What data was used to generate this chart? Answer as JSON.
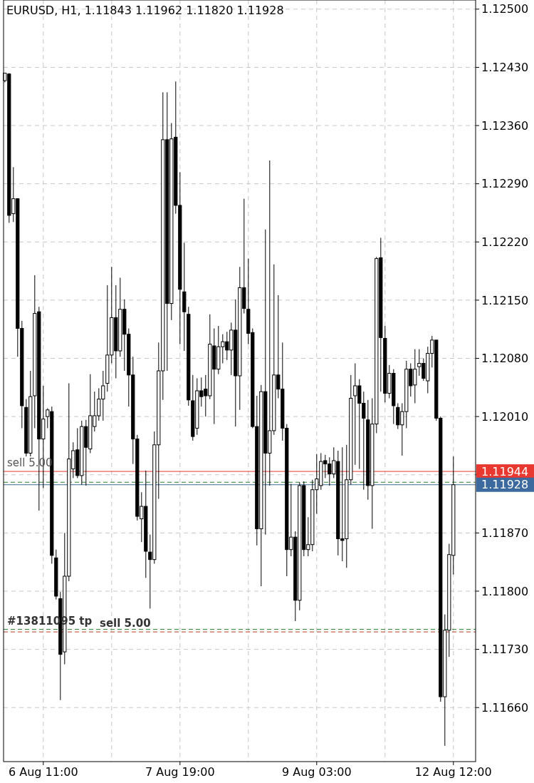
{
  "chart_data": {
    "type": "candlestick",
    "title": "EURUSD, H1, 1.11843 1.11962 1.11820 1.11928",
    "color": "#000000",
    "grid": true,
    "categories": [
      null,
      null,
      null,
      null,
      null,
      null,
      null,
      null,
      null,
      "6 Aug 11:00",
      null,
      null,
      null,
      null,
      null,
      null,
      null,
      null,
      null,
      null,
      null,
      null,
      null,
      null,
      null,
      null,
      null,
      null,
      null,
      null,
      null,
      null,
      null,
      null,
      null,
      null,
      null,
      null,
      null,
      null,
      null,
      "7 Aug 19:00",
      null,
      null,
      null,
      null,
      null,
      null,
      null,
      null,
      null,
      null,
      null,
      null,
      null,
      null,
      null,
      null,
      null,
      null,
      null,
      null,
      null,
      null,
      null,
      null,
      null,
      null,
      null,
      null,
      null,
      null,
      null,
      "9 Aug 03:00",
      null,
      null,
      null,
      null,
      null,
      null,
      null,
      null,
      null,
      null,
      null,
      null,
      null,
      null,
      null,
      null,
      null,
      null,
      null,
      null,
      null,
      null,
      null,
      null,
      null,
      null,
      null,
      null,
      null,
      null,
      null,
      "12 Aug 12:00"
    ],
    "ohlc": [
      [
        1.12414,
        1.12423,
        1.12412,
        1.12423
      ],
      [
        1.12422,
        1.12423,
        1.12243,
        1.12252
      ],
      [
        1.12254,
        1.1231,
        1.12244,
        1.12272
      ],
      [
        1.12272,
        1.12272,
        1.12082,
        1.12116
      ],
      [
        1.12116,
        1.12125,
        1.11996,
        1.12023
      ],
      [
        1.12021,
        1.12031,
        1.11962,
        1.11966
      ],
      [
        1.11966,
        1.12065,
        1.11962,
        1.12034
      ],
      [
        1.12035,
        1.1218,
        1.11996,
        1.12134
      ],
      [
        1.12136,
        1.12142,
        1.11897,
        1.11983
      ],
      [
        1.11983,
        1.12047,
        1.11924,
        1.12007
      ],
      [
        1.1201,
        1.1202,
        1.11996,
        1.12018
      ],
      [
        1.12016,
        1.12022,
        1.11833,
        1.11843
      ],
      [
        1.1184,
        1.1185,
        1.1179,
        1.11794
      ],
      [
        1.11791,
        1.11799,
        1.11669,
        1.11724
      ],
      [
        1.11727,
        1.1187,
        1.11712,
        1.11818
      ],
      [
        1.11818,
        1.1205,
        1.11812,
        1.11959
      ],
      [
        1.11947,
        1.11979,
        1.11936,
        1.11969
      ],
      [
        1.1197,
        1.11996,
        1.11936,
        1.11939
      ],
      [
        1.11939,
        1.12005,
        1.11928,
        1.11998
      ],
      [
        1.11998,
        1.12006,
        1.11927,
        1.11973
      ],
      [
        1.11971,
        1.12061,
        1.11966,
        1.12011
      ],
      [
        1.11998,
        1.1204,
        1.11992,
        1.12011
      ],
      [
        1.12011,
        1.12044,
        1.12005,
        1.12031
      ],
      [
        1.12031,
        1.12065,
        1.12005,
        1.12047
      ],
      [
        1.1205,
        1.12168,
        1.1204,
        1.12084
      ],
      [
        1.12084,
        1.1219,
        1.12074,
        1.12129
      ],
      [
        1.12129,
        1.12168,
        1.12056,
        1.12089
      ],
      [
        1.12089,
        1.12177,
        1.12082,
        1.12139
      ],
      [
        1.12139,
        1.12151,
        1.12065,
        1.12109
      ],
      [
        1.12109,
        1.12116,
        1.12022,
        1.1206
      ],
      [
        1.1206,
        1.12082,
        1.11953,
        1.11983
      ],
      [
        1.11983,
        1.11988,
        1.11885,
        1.1189
      ],
      [
        1.11887,
        1.11919,
        1.11859,
        1.11902
      ],
      [
        1.11902,
        1.11945,
        1.11816,
        1.11848
      ],
      [
        1.11847,
        1.11868,
        1.11779,
        1.11838
      ],
      [
        1.11838,
        1.11992,
        1.11833,
        1.11976
      ],
      [
        1.11976,
        1.12099,
        1.11911,
        1.12065
      ],
      [
        1.12065,
        1.124,
        1.1203,
        1.12343
      ],
      [
        1.12343,
        1.124,
        1.12065,
        1.12146
      ],
      [
        1.12146,
        1.12363,
        1.12126,
        1.12344
      ],
      [
        1.12346,
        1.12413,
        1.12254,
        1.12264
      ],
      [
        1.12264,
        1.12304,
        1.12097,
        1.12163
      ],
      [
        1.1216,
        1.12219,
        1.12089,
        1.12136
      ],
      [
        1.12133,
        1.12142,
        1.12023,
        1.1203
      ],
      [
        1.12029,
        1.1206,
        1.11981,
        1.11986
      ],
      [
        1.11996,
        1.12056,
        1.11988,
        1.12041
      ],
      [
        1.12041,
        1.12057,
        1.12022,
        1.12034
      ],
      [
        1.12043,
        1.1206,
        1.1201,
        1.12035
      ],
      [
        1.12035,
        1.12133,
        1.12031,
        1.12097
      ],
      [
        1.12095,
        1.12116,
        1.12001,
        1.12067
      ],
      [
        1.12067,
        1.12119,
        1.12061,
        1.12094
      ],
      [
        1.12094,
        1.12109,
        1.12074,
        1.121
      ],
      [
        1.121,
        1.12112,
        1.12078,
        1.1209
      ],
      [
        1.1209,
        1.12123,
        1.1206,
        1.12114
      ],
      [
        1.12114,
        1.12151,
        1.11998,
        1.12059
      ],
      [
        1.12059,
        1.1219,
        1.12018,
        1.12165
      ],
      [
        1.12165,
        1.12272,
        1.12134,
        1.1214
      ],
      [
        1.12139,
        1.122,
        1.12097,
        1.1211
      ],
      [
        1.12111,
        1.12116,
        1.11996,
        1.11998
      ],
      [
        1.11998,
        1.12035,
        1.11855,
        1.11875
      ],
      [
        1.11875,
        1.12048,
        1.11806,
        1.1204
      ],
      [
        1.1204,
        1.12235,
        1.11868,
        1.11966
      ],
      [
        1.11966,
        1.12318,
        1.11927,
        1.11993
      ],
      [
        1.11993,
        1.12193,
        1.11988,
        1.1206
      ],
      [
        1.1206,
        1.12156,
        1.12032,
        1.12043
      ],
      [
        1.12043,
        1.12099,
        1.11981,
        1.11996
      ],
      [
        1.11996,
        1.12001,
        1.11818,
        1.1185
      ],
      [
        1.1185,
        1.11929,
        1.11842,
        1.11865
      ],
      [
        1.11865,
        1.11872,
        1.11764,
        1.11789
      ],
      [
        1.11789,
        1.11931,
        1.11777,
        1.11927
      ],
      [
        1.11927,
        1.11932,
        1.11842,
        1.1185
      ],
      [
        1.1185,
        1.11889,
        1.11842,
        1.11856
      ],
      [
        1.11856,
        1.11934,
        1.11848,
        1.11922
      ],
      [
        1.11922,
        1.11965,
        1.11893,
        1.11935
      ],
      [
        1.11927,
        1.11966,
        1.11922,
        1.11956
      ],
      [
        1.11957,
        1.11964,
        1.11936,
        1.11953
      ],
      [
        1.11953,
        1.11961,
        1.11927,
        1.11941
      ],
      [
        1.11941,
        1.11973,
        1.11936,
        1.11957
      ],
      [
        1.11956,
        1.11969,
        1.11843,
        1.11863
      ],
      [
        1.11863,
        1.11973,
        1.11836,
        1.11861
      ],
      [
        1.11863,
        1.11976,
        1.11828,
        1.11934
      ],
      [
        1.11934,
        1.1206,
        1.11928,
        1.12032
      ],
      [
        1.12035,
        1.12074,
        1.11952,
        1.12047
      ],
      [
        1.12047,
        1.12055,
        1.11947,
        1.12026
      ],
      [
        1.12026,
        1.1204,
        1.11922,
        1.12008
      ],
      [
        1.12006,
        1.1203,
        1.1191,
        1.11927
      ],
      [
        1.11927,
        1.12032,
        1.11875,
        1.12001
      ],
      [
        1.12001,
        1.12202,
        1.1199,
        1.122
      ],
      [
        1.12201,
        1.12225,
        1.1204,
        1.12105
      ],
      [
        1.12104,
        1.12119,
        1.12027,
        1.12038
      ],
      [
        1.12038,
        1.12072,
        1.12032,
        1.12062
      ],
      [
        1.12062,
        1.12067,
        1.12001,
        1.12023
      ],
      [
        1.12021,
        1.12026,
        1.11995,
        1.12
      ],
      [
        1.12,
        1.12026,
        1.11963,
        1.12016
      ],
      [
        1.12016,
        1.12077,
        1.11996,
        1.12067
      ],
      [
        1.12067,
        1.12074,
        1.12034,
        1.12047
      ],
      [
        1.12048,
        1.12091,
        1.12026,
        1.12067
      ],
      [
        1.1207,
        1.12091,
        1.12059,
        1.12074
      ],
      [
        1.12074,
        1.1208,
        1.12053,
        1.12056
      ],
      [
        1.12053,
        1.12094,
        1.12038,
        1.12086
      ],
      [
        1.12086,
        1.12107,
        1.12069,
        1.12102
      ],
      [
        1.12102,
        1.12102,
        1.12005,
        1.12008
      ],
      [
        1.12008,
        1.1201,
        1.11667,
        1.11673
      ],
      [
        1.11673,
        1.11772,
        1.11614,
        1.11753
      ],
      [
        1.11753,
        1.11857,
        1.11721,
        1.11844
      ],
      [
        1.11843,
        1.11962,
        1.1182,
        1.11928
      ]
    ],
    "ylim": [
      1.11595,
      1.12511
    ],
    "yticks": [
      {
        "value": 1.125,
        "label": "1.12500"
      },
      {
        "value": 1.1243,
        "label": "1.12430"
      },
      {
        "value": 1.1236,
        "label": "1.12360"
      },
      {
        "value": 1.1229,
        "label": "1.12290"
      },
      {
        "value": 1.1222,
        "label": "1.12220"
      },
      {
        "value": 1.1215,
        "label": "1.12150"
      },
      {
        "value": 1.1208,
        "label": "1.12080"
      },
      {
        "value": 1.1201,
        "label": "1.12010"
      },
      {
        "value": 1.1194,
        "label": null
      },
      {
        "value": 1.1187,
        "label": "1.11870"
      },
      {
        "value": 1.118,
        "label": "1.11800"
      },
      {
        "value": 1.1173,
        "label": "1.11730"
      },
      {
        "value": 1.1166,
        "label": "1.11660"
      }
    ],
    "annotations": [
      "1.11944",
      "1.11928"
    ],
    "ref_lines": [
      {
        "axis": "y",
        "value": 1.11944,
        "label": "sell 5.00",
        "color": "#e8382f",
        "line_style": "solid"
      },
      {
        "axis": "y",
        "value": 1.11931,
        "color": "#2e7d32",
        "line_style": "dashed"
      },
      {
        "axis": "y",
        "value": 1.11928,
        "color": "#3d6a9e",
        "line_style": "solid"
      },
      {
        "axis": "y",
        "value": 1.11754,
        "label": "#13811095 tp",
        "color": "#2e7d32",
        "line_style": "dashed"
      },
      {
        "axis": "y",
        "value": 1.11751,
        "label": "sell 5.00",
        "color": "#c0392b",
        "line_style": "dashed"
      }
    ]
  }
}
